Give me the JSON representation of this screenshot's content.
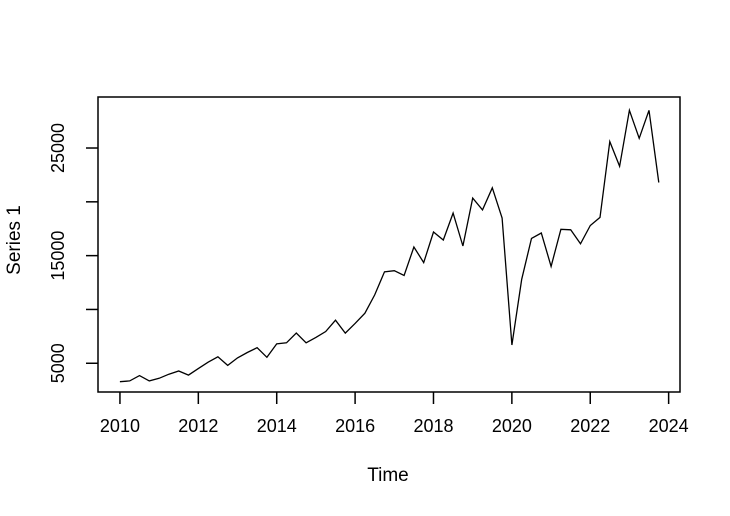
{
  "figure": {
    "background_color": "#ffffff",
    "axis_color": "#000000",
    "title": ""
  },
  "chart_data": {
    "type": "line",
    "title": "",
    "xlabel": "Time",
    "ylabel": "Series 1",
    "series": [
      {
        "name": "Series 1",
        "frequency": "quarterly",
        "x": [
          2010.0,
          2010.25,
          2010.5,
          2010.75,
          2011.0,
          2011.25,
          2011.5,
          2011.75,
          2012.0,
          2012.25,
          2012.5,
          2012.75,
          2013.0,
          2013.25,
          2013.5,
          2013.75,
          2014.0,
          2014.25,
          2014.5,
          2014.75,
          2015.0,
          2015.25,
          2015.5,
          2015.75,
          2016.0,
          2016.25,
          2016.5,
          2016.75,
          2017.0,
          2017.25,
          2017.5,
          2017.75,
          2018.0,
          2018.25,
          2018.5,
          2018.75,
          2019.0,
          2019.25,
          2019.5,
          2019.75,
          2020.0,
          2020.25,
          2020.5,
          2020.75,
          2021.0,
          2021.25,
          2021.5,
          2021.75,
          2022.0,
          2022.25,
          2022.5,
          2022.75,
          2023.0,
          2023.25,
          2023.5,
          2023.75
        ],
        "values": [
          3290,
          3360,
          3850,
          3360,
          3600,
          3980,
          4280,
          3900,
          4500,
          5100,
          5600,
          4800,
          5500,
          6000,
          6450,
          5550,
          6800,
          6900,
          7800,
          6900,
          7400,
          7950,
          9000,
          7800,
          8700,
          9650,
          11350,
          13500,
          13600,
          13150,
          15800,
          14350,
          17200,
          16450,
          18950,
          15900,
          20350,
          19250,
          21300,
          18500,
          6700,
          12800,
          16600,
          17100,
          14000,
          17450,
          17400,
          16100,
          17800,
          18550,
          25600,
          23300,
          28500,
          25900,
          28500,
          21800
        ]
      }
    ],
    "line_color": "#000000",
    "grid": false,
    "legend_position": "none",
    "xlim": [
      2009.44,
      2024.29
    ],
    "ylim": [
      2330,
      29740
    ],
    "x_ticks": [
      {
        "value": 2010,
        "label": "2010"
      },
      {
        "value": 2012,
        "label": "2012"
      },
      {
        "value": 2014,
        "label": "2014"
      },
      {
        "value": 2016,
        "label": "2016"
      },
      {
        "value": 2018,
        "label": "2018"
      },
      {
        "value": 2020,
        "label": "2020"
      },
      {
        "value": 2022,
        "label": "2022"
      },
      {
        "value": 2024,
        "label": "2024"
      }
    ],
    "y_ticks": [
      {
        "value": 5000,
        "label": "5000"
      },
      {
        "value": 10000,
        "label": ""
      },
      {
        "value": 15000,
        "label": "15000"
      },
      {
        "value": 20000,
        "label": ""
      },
      {
        "value": 25000,
        "label": "25000"
      }
    ]
  }
}
